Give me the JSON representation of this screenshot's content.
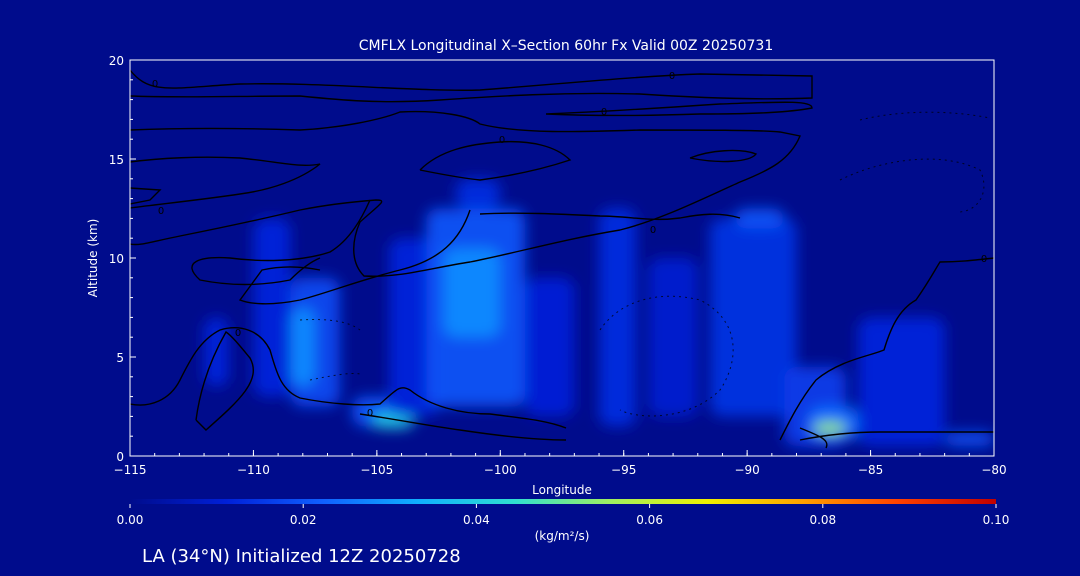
{
  "chart_data": {
    "type": "heatmap",
    "title": "CMFLX Longitudinal X–Section 60hr  Fx Valid 00Z 20250731",
    "xlabel": "Longitude",
    "ylabel": "Altitude (km)",
    "xlim": [
      -115,
      -80
    ],
    "ylim": [
      0,
      20
    ],
    "xticks": [
      -115,
      -110,
      -105,
      -100,
      -95,
      -90,
      -85,
      -80
    ],
    "xtick_labels": [
      "−115",
      "−110",
      "−105",
      "−100",
      "−95",
      "−90",
      "−85",
      "−80"
    ],
    "yticks": [
      0,
      5,
      10,
      15,
      20
    ],
    "ytick_labels": [
      "0",
      "5",
      "10",
      "15",
      "20"
    ],
    "colorbar": {
      "min": 0.0,
      "max": 0.1,
      "ticks": [
        0.0,
        0.02,
        0.04,
        0.06,
        0.08,
        0.1
      ],
      "tick_labels": [
        "0.00",
        "0.02",
        "0.04",
        "0.06",
        "0.08",
        "0.10"
      ],
      "units_label": "(kg/m²/s)",
      "colormap": [
        "#000c8c",
        "#0020d8",
        "#1060ff",
        "#10b0ff",
        "#30e0d0",
        "#a0f060",
        "#f0f000",
        "#ffa000",
        "#ff4000",
        "#c00000"
      ]
    },
    "contour_labels": [
      "0",
      "0",
      "0",
      "0",
      "0",
      "0",
      "0",
      "0",
      "0"
    ],
    "cells": [
      {
        "x": [
          -112,
          -111
        ],
        "y": [
          3.5,
          7
        ],
        "v": 0.012
      },
      {
        "x": [
          -110,
          -108.5
        ],
        "y": [
          3,
          12
        ],
        "v": 0.012
      },
      {
        "x": [
          -108.5,
          -106.5
        ],
        "y": [
          2.5,
          9
        ],
        "v": 0.018
      },
      {
        "x": [
          -108.5,
          -107.5
        ],
        "y": [
          3.5,
          7.5
        ],
        "v": 0.028
      },
      {
        "x": [
          -106,
          -104
        ],
        "y": [
          1.5,
          3
        ],
        "v": 0.02
      },
      {
        "x": [
          -105.2,
          -103.5
        ],
        "y": [
          1.4,
          2.2
        ],
        "v": 0.04
      },
      {
        "x": [
          -104.5,
          -102.5
        ],
        "y": [
          2,
          11
        ],
        "v": 0.012
      },
      {
        "x": [
          -103,
          -99
        ],
        "y": [
          2.5,
          12.5
        ],
        "v": 0.02
      },
      {
        "x": [
          -102.3,
          -100
        ],
        "y": [
          6,
          10.5
        ],
        "v": 0.028
      },
      {
        "x": [
          -101.8,
          -100
        ],
        "y": [
          12.5,
          14
        ],
        "v": 0.013
      },
      {
        "x": [
          -99,
          -97
        ],
        "y": [
          2,
          9
        ],
        "v": 0.011
      },
      {
        "x": [
          -96,
          -94.5
        ],
        "y": [
          1.5,
          12.5
        ],
        "v": 0.013
      },
      {
        "x": [
          -94,
          -92
        ],
        "y": [
          2,
          10
        ],
        "v": 0.01
      },
      {
        "x": [
          -91.5,
          -88
        ],
        "y": [
          2,
          12
        ],
        "v": 0.014
      },
      {
        "x": [
          -90.5,
          -88.5
        ],
        "y": [
          11.5,
          12.5
        ],
        "v": 0.02
      },
      {
        "x": [
          -88.5,
          -86
        ],
        "y": [
          0.5,
          4.5
        ],
        "v": 0.016
      },
      {
        "x": [
          -87.5,
          -85.5
        ],
        "y": [
          0.8,
          2.5
        ],
        "v": 0.024
      },
      {
        "x": [
          -87.3,
          -86
        ],
        "y": [
          1.1,
          1.7
        ],
        "v": 0.055
      },
      {
        "x": [
          -85.5,
          -82
        ],
        "y": [
          0.5,
          7
        ],
        "v": 0.012
      },
      {
        "x": [
          -82,
          -80
        ],
        "y": [
          0.5,
          1.2
        ],
        "v": 0.02
      }
    ]
  },
  "footer": {
    "caption": "LA (34°N) Initialized 12Z 20250728"
  }
}
